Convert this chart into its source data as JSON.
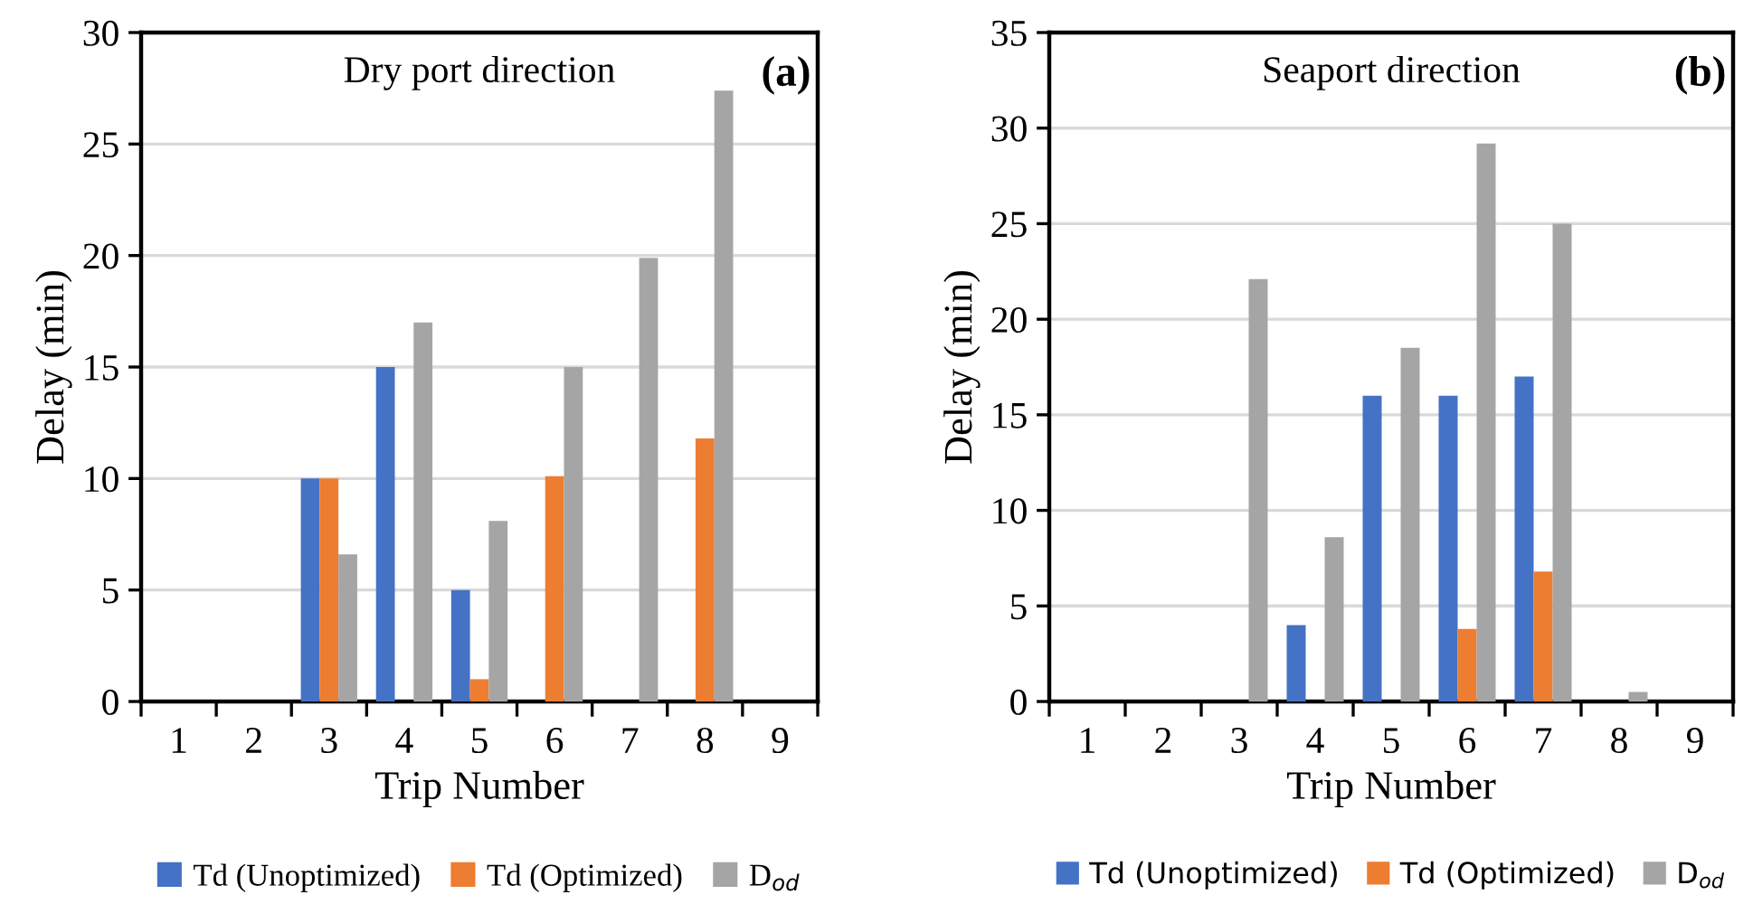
{
  "chart_data": [
    {
      "type": "bar",
      "title": "Dry port direction",
      "xlabel": "Trip Number",
      "ylabel": "Delay (min)",
      "annotations": [
        "(a)"
      ],
      "categories": [
        "1",
        "2",
        "3",
        "4",
        "5",
        "6",
        "7",
        "8",
        "9"
      ],
      "series": [
        {
          "name": "Td (Unoptimized)",
          "color": "#4472c4",
          "values": [
            0,
            0,
            10,
            15,
            5,
            0,
            0,
            0,
            0
          ]
        },
        {
          "name": "Td (Optimized)",
          "color": "#ed7d31",
          "values": [
            0,
            0,
            10,
            0,
            1,
            10.1,
            0,
            11.8,
            0
          ]
        },
        {
          "name": "D$_{od}$",
          "color": "#a5a5a5",
          "values": [
            0,
            0,
            6.6,
            17,
            8.1,
            15,
            19.9,
            27.4,
            0
          ]
        }
      ],
      "ylim": [
        0,
        30
      ],
      "yticks": [
        0,
        5,
        10,
        15,
        20,
        25,
        30
      ],
      "grid": "y",
      "legend": "bottom"
    },
    {
      "type": "bar",
      "title": "Seaport direction",
      "xlabel": "Trip Number",
      "ylabel": "Delay (min)",
      "annotations": [
        "(b)"
      ],
      "categories": [
        "1",
        "2",
        "3",
        "4",
        "5",
        "6",
        "7",
        "8",
        "9"
      ],
      "series": [
        {
          "name": "Td (Unoptimized)",
          "color": "#4472c4",
          "values": [
            0,
            0,
            0,
            4,
            16,
            16,
            17,
            0,
            0
          ]
        },
        {
          "name": "Td (Optimized)",
          "color": "#ed7d31",
          "values": [
            0,
            0,
            0,
            0,
            0,
            3.8,
            6.8,
            0,
            0
          ]
        },
        {
          "name": "D$_{od}$",
          "color": "#a5a5a5",
          "values": [
            0,
            0,
            22.1,
            8.6,
            18.5,
            29.2,
            25,
            0.5,
            0
          ]
        }
      ],
      "ylim": [
        0,
        35
      ],
      "yticks": [
        0,
        5,
        10,
        15,
        20,
        25,
        30,
        35
      ],
      "grid": "y",
      "legend": "bottom"
    }
  ]
}
